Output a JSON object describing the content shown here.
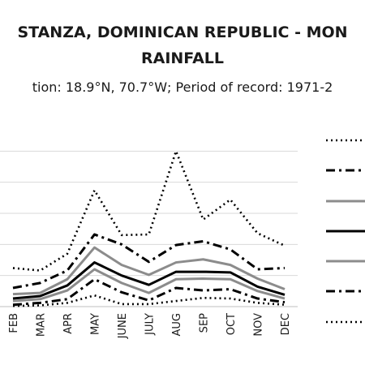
{
  "chart_data": {
    "type": "line",
    "title_line1": "STANZA, DOMINICAN REPUBLIC - MON",
    "title_line2": "RAINFALL",
    "subtitle": "tion: 18.9°N, 70.7°W; Period of record: 1971-2",
    "categories": [
      "FEB",
      "MAR",
      "APR",
      "MAY",
      "JUNE",
      "JULY",
      "AUG",
      "SEP",
      "OCT",
      "NOV",
      "DEC"
    ],
    "ylim": [
      0,
      300
    ],
    "gridlines": [
      0,
      50,
      100,
      150,
      200,
      250
    ],
    "legend_position": "right",
    "series": [
      {
        "style": "dotted",
        "color": "#000000",
        "values": [
          62,
          58,
          85,
          187,
          115,
          116,
          250,
          140,
          172,
          118,
          98
        ]
      },
      {
        "style": "dashdot",
        "color": "#000000",
        "values": [
          30,
          38,
          58,
          116,
          100,
          72,
          99,
          105,
          92,
          60,
          62
        ]
      },
      {
        "style": "solid",
        "color": "#8c8c8c",
        "values": [
          20,
          22,
          44,
          95,
          67,
          51,
          71,
          76,
          67,
          45,
          28
        ]
      },
      {
        "style": "solid",
        "color": "#000000",
        "values": [
          13,
          17,
          34,
          71,
          50,
          35,
          56,
          56,
          55,
          32,
          19
        ]
      },
      {
        "style": "solid",
        "color": "#8c8c8c",
        "values": [
          9,
          12,
          26,
          60,
          38,
          22,
          44,
          45,
          44,
          25,
          13
        ]
      },
      {
        "style": "dashdot",
        "color": "#000000",
        "values": [
          3,
          6,
          12,
          44,
          23,
          10,
          30,
          26,
          28,
          13,
          7
        ]
      },
      {
        "style": "dotted",
        "color": "#000000",
        "values": [
          1,
          2,
          6,
          18,
          4,
          4,
          9,
          14,
          13,
          6,
          3
        ]
      }
    ]
  }
}
